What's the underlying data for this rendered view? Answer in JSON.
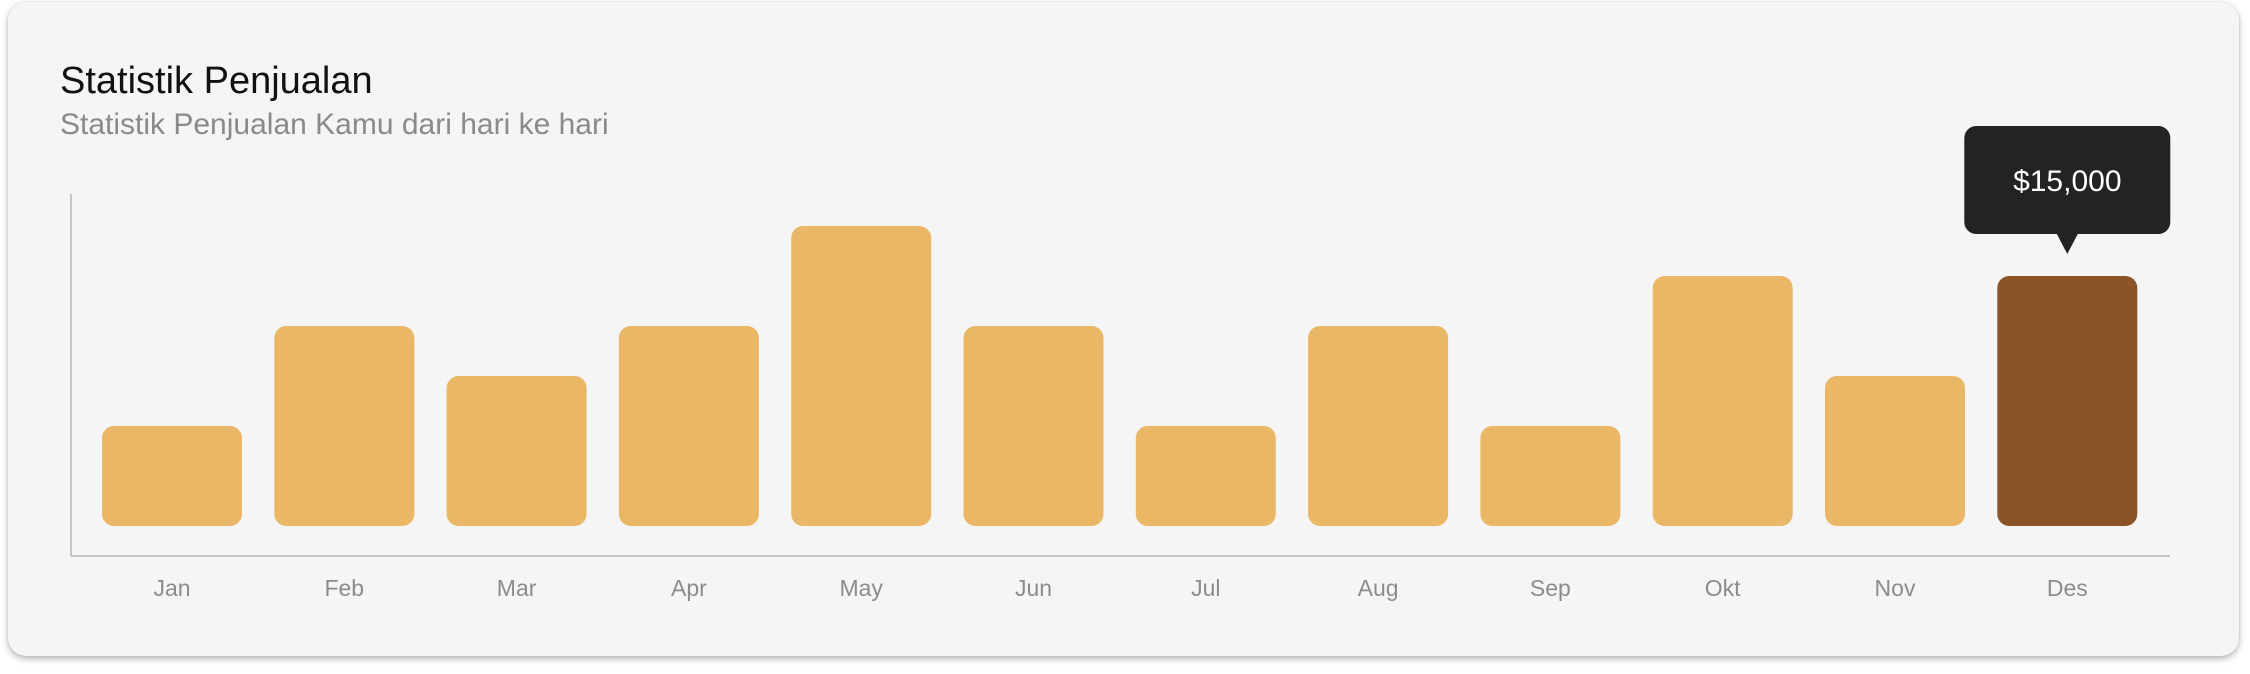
{
  "card": {
    "title": "Statistik Penjualan",
    "subtitle": "Statistik Penjualan Kamu dari hari ke hari"
  },
  "chart_data": {
    "type": "bar",
    "title": "Statistik Penjualan",
    "subtitle": "Statistik Penjualan Kamu dari hari ke hari",
    "xlabel": "",
    "ylabel": "",
    "categories": [
      "Jan",
      "Feb",
      "Mar",
      "Apr",
      "May",
      "Jun",
      "Jul",
      "Aug",
      "Sep",
      "Okt",
      "Nov",
      "Des"
    ],
    "values": [
      6000,
      12000,
      9000,
      12000,
      18000,
      12000,
      6000,
      12000,
      6000,
      15000,
      9000,
      15000
    ],
    "ylim": [
      0,
      20000
    ],
    "grid": false,
    "legend": "none",
    "highlight_index": 11,
    "tooltip": "$15,000",
    "colors": {
      "bar": "#e9b765",
      "bar_highlight": "#8b5428",
      "tooltip_bg": "#222324",
      "axis": "#c4c4c4"
    }
  }
}
